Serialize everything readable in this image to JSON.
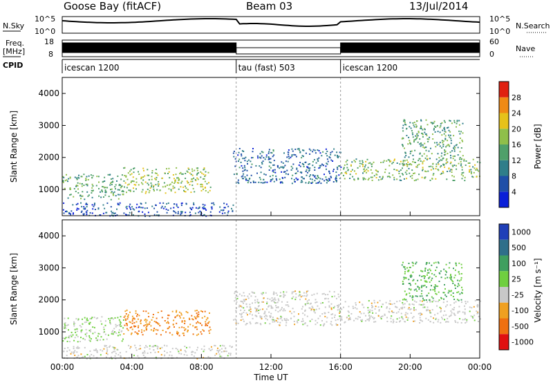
{
  "header": {
    "station": "Goose Bay (fitACF)",
    "beam": "Beam 03",
    "date": "13/Jul/2014"
  },
  "status_panels": {
    "nsky_label": "N.Sky",
    "nsky_ticks": [
      "10^5",
      "10^0"
    ],
    "nsearch_label": "N.Search",
    "nsearch_ticks": [
      "10^5",
      "10^0"
    ],
    "freq_label_1": "Freq.",
    "freq_label_2": "[MHz]",
    "freq_ticks": [
      "18",
      "8"
    ],
    "nave_label": "Nave",
    "nave_ticks": [
      "60",
      "0"
    ],
    "cpid_label": "CPID"
  },
  "chart_data": [
    {
      "type": "timeline",
      "name": "CPID",
      "segments": [
        {
          "label": "icescan 1200",
          "start_hour": 0,
          "end_hour": 10
        },
        {
          "label": "tau (fast) 503",
          "start_hour": 10,
          "end_hour": 16
        },
        {
          "label": "icescan 1200",
          "start_hour": 16,
          "end_hour": 24
        }
      ]
    },
    {
      "type": "heatmap",
      "title": "Power",
      "ylabel": "Slant Range [km]",
      "yticks": [
        "1000",
        "2000",
        "3000",
        "4000"
      ],
      "ylim": [
        180,
        4500
      ],
      "xlim": [
        0,
        24
      ],
      "colorbar_label": "Power [dB]",
      "colorbar_ticks": [
        "4",
        "8",
        "12",
        "16",
        "20",
        "24",
        "28"
      ],
      "colorscale": [
        "#0a1fd8",
        "#1f4fa8",
        "#2f7e8a",
        "#4fa06a",
        "#8fbf4a",
        "#e6c21a",
        "#f08a14",
        "#e02010"
      ],
      "echo_regions": [
        {
          "t0": 0.0,
          "t1": 3.5,
          "r0": 700,
          "r1": 1500,
          "level": 14
        },
        {
          "t0": 3.5,
          "t1": 8.5,
          "r0": 900,
          "r1": 1700,
          "level": 18
        },
        {
          "t0": 0.0,
          "t1": 9.8,
          "r0": 180,
          "r1": 600,
          "level": 6
        },
        {
          "t0": 9.8,
          "t1": 16.0,
          "r0": 1200,
          "r1": 2300,
          "level": 8
        },
        {
          "t0": 16.0,
          "t1": 24.0,
          "r0": 1300,
          "r1": 2000,
          "level": 16
        },
        {
          "t0": 19.5,
          "t1": 23.0,
          "r0": 2000,
          "r1": 3200,
          "level": 14
        }
      ]
    },
    {
      "type": "heatmap",
      "title": "Velocity",
      "ylabel": "Slant Range [km]",
      "yticks": [
        "1000",
        "2000",
        "3000",
        "4000"
      ],
      "ylim": [
        180,
        4500
      ],
      "xlim": [
        0,
        24
      ],
      "xlabel": "Time UT",
      "xticks": [
        "00:00",
        "04:00",
        "08:00",
        "12:00",
        "16:00",
        "20:00",
        "00:00"
      ],
      "colorbar_label": "Velocity [m s⁻¹]",
      "colorbar_ticks": [
        "1000",
        "500",
        "100",
        "25",
        "-25",
        "-100",
        "-500",
        "-1000"
      ],
      "colorscale": [
        "#1f3fb8",
        "#2f6f8a",
        "#3f9f5f",
        "#6fcf3f",
        "#c8c8c8",
        "#f0a020",
        "#f07010",
        "#e01010"
      ],
      "echo_regions": [
        {
          "t0": 0.0,
          "t1": 3.5,
          "r0": 700,
          "r1": 1500,
          "level": 25
        },
        {
          "t0": 3.5,
          "t1": 8.5,
          "r0": 900,
          "r1": 1700,
          "level": -100
        },
        {
          "t0": 0.0,
          "t1": 9.8,
          "r0": 180,
          "r1": 600,
          "level": 0
        },
        {
          "t0": 9.8,
          "t1": 16.0,
          "r0": 1200,
          "r1": 2300,
          "level": 0
        },
        {
          "t0": 16.0,
          "t1": 24.0,
          "r0": 1300,
          "r1": 2000,
          "level": 0
        },
        {
          "t0": 19.5,
          "t1": 23.0,
          "r0": 2000,
          "r1": 3200,
          "level": 100
        }
      ]
    }
  ]
}
